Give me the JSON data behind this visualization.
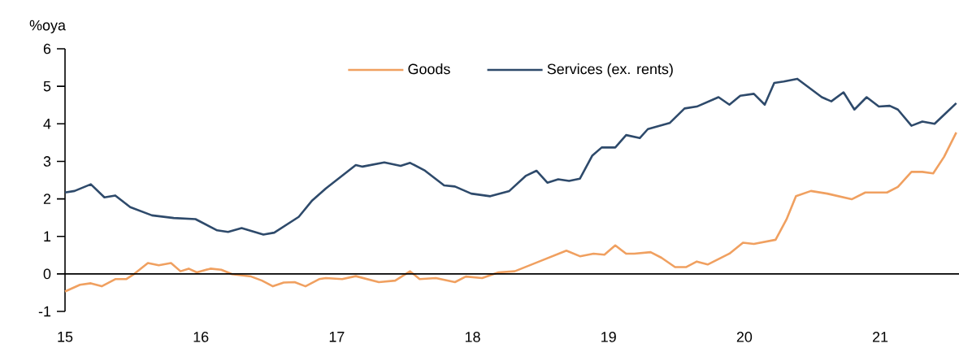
{
  "chart_data": {
    "type": "line",
    "ylabel": "%oya",
    "legend": "top",
    "xlim": [
      15,
      21.58
    ],
    "xticks": [
      15,
      16,
      17,
      18,
      19,
      20,
      21
    ],
    "ylim": [
      -1,
      6
    ],
    "yticks": [
      -1,
      0,
      1,
      2,
      3,
      4,
      5,
      6
    ],
    "ref_lines": [
      {
        "axis": "y",
        "value": 0,
        "color": "#000000"
      }
    ],
    "series": [
      {
        "name": "Goods",
        "color": "#f0a060",
        "x": [
          15.0,
          15.11,
          15.19,
          15.27,
          15.37,
          15.45,
          15.51,
          15.61,
          15.69,
          15.78,
          15.85,
          15.91,
          15.97,
          16.07,
          16.15,
          16.23,
          16.37,
          16.45,
          16.53,
          16.61,
          16.69,
          16.77,
          16.87,
          16.92,
          17.04,
          17.14,
          17.31,
          17.43,
          17.54,
          17.61,
          17.73,
          17.87,
          17.95,
          18.07,
          18.19,
          18.31,
          18.49,
          18.69,
          18.79,
          18.89,
          18.97,
          19.05,
          19.13,
          19.19,
          19.31,
          19.39,
          19.49,
          19.57,
          19.65,
          19.73,
          19.89,
          19.99,
          20.07,
          20.23,
          20.31,
          20.38,
          20.49,
          20.61,
          20.79,
          20.89,
          21.05,
          21.13,
          21.23,
          21.31,
          21.39,
          21.47,
          21.56
        ],
        "values": [
          -0.47,
          -0.29,
          -0.25,
          -0.33,
          -0.14,
          -0.14,
          0,
          0.29,
          0.23,
          0.29,
          0.07,
          0.14,
          0.04,
          0.14,
          0.11,
          -0.01,
          -0.07,
          -0.18,
          -0.33,
          -0.23,
          -0.22,
          -0.33,
          -0.14,
          -0.11,
          -0.14,
          -0.06,
          -0.22,
          -0.18,
          0.07,
          -0.14,
          -0.11,
          -0.22,
          -0.07,
          -0.11,
          0.04,
          0.07,
          0.33,
          0.62,
          0.47,
          0.54,
          0.51,
          0.76,
          0.54,
          0.54,
          0.58,
          0.43,
          0.18,
          0.18,
          0.33,
          0.25,
          0.54,
          0.83,
          0.8,
          0.91,
          1.45,
          2.07,
          2.21,
          2.14,
          1.99,
          2.17,
          2.17,
          2.32,
          2.72,
          2.72,
          2.68,
          3.12,
          3.77
        ]
      },
      {
        "name": "Services (ex. rents)",
        "color": "#2e4a6b",
        "x": [
          15.0,
          15.07,
          15.19,
          15.29,
          15.37,
          15.48,
          15.64,
          15.8,
          15.96,
          16.12,
          16.2,
          16.3,
          16.46,
          16.54,
          16.72,
          16.82,
          16.92,
          17.14,
          17.19,
          17.35,
          17.47,
          17.54,
          17.65,
          17.79,
          17.87,
          17.99,
          18.13,
          18.27,
          18.39,
          18.47,
          18.55,
          18.63,
          18.71,
          18.79,
          18.88,
          18.95,
          19.05,
          19.13,
          19.23,
          19.29,
          19.45,
          19.56,
          19.65,
          19.81,
          19.89,
          19.97,
          20.07,
          20.15,
          20.22,
          20.29,
          20.39,
          20.57,
          20.64,
          20.73,
          20.81,
          20.9,
          20.99,
          21.07,
          21.13,
          21.23,
          21.31,
          21.4,
          21.49,
          21.56
        ],
        "values": [
          2.17,
          2.21,
          2.39,
          2.04,
          2.09,
          1.78,
          1.56,
          1.49,
          1.46,
          1.16,
          1.12,
          1.22,
          1.05,
          1.1,
          1.52,
          1.96,
          2.28,
          2.9,
          2.86,
          2.97,
          2.88,
          2.96,
          2.75,
          2.36,
          2.33,
          2.14,
          2.07,
          2.21,
          2.61,
          2.75,
          2.43,
          2.52,
          2.48,
          2.54,
          3.15,
          3.37,
          3.37,
          3.7,
          3.62,
          3.86,
          4.02,
          4.41,
          4.46,
          4.71,
          4.51,
          4.75,
          4.8,
          4.51,
          5.09,
          5.13,
          5.2,
          4.71,
          4.6,
          4.84,
          4.38,
          4.71,
          4.46,
          4.48,
          4.38,
          3.95,
          4.06,
          4.0,
          4.31,
          4.55
        ]
      }
    ]
  }
}
